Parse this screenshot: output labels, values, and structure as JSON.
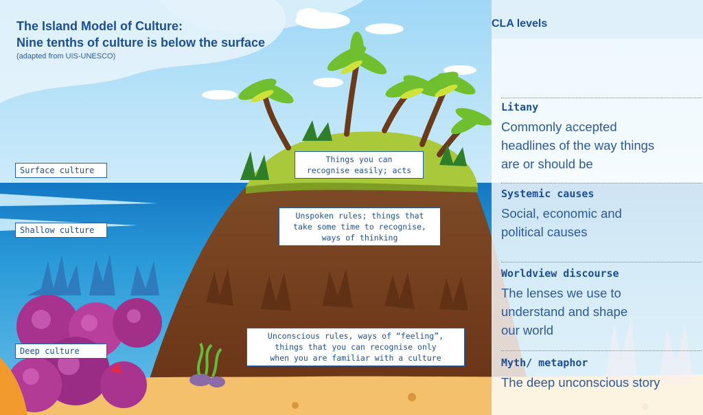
{
  "diagram": {
    "title_line1": "The Island Model of Culture:",
    "title_line2": "Nine tenths of culture is below the surface",
    "subtitle": "(adapted from UIS-UNESCO)",
    "layers": [
      {
        "label": "Surface culture"
      },
      {
        "label": "Shallow culture"
      },
      {
        "label": "Deep culture"
      }
    ],
    "notes": [
      {
        "lines": [
          "Things you can",
          "recognise easily; acts"
        ]
      },
      {
        "lines": [
          "Unspoken rules; things that",
          "take some time to recognise,",
          "ways of thinking"
        ]
      },
      {
        "lines": [
          "Unconscious rules, ways of “feeling”,",
          "things that you can recognise only",
          "when you are familiar with a culture"
        ]
      }
    ]
  },
  "cla_panel": {
    "title": "CLA levels",
    "levels": [
      {
        "name": "Litany",
        "desc_lines": [
          "Commonly accepted",
          "headlines of the way things",
          "are or should be"
        ]
      },
      {
        "name": "Systemic causes",
        "desc_lines": [
          "Social, economic and",
          "political causes"
        ]
      },
      {
        "name": "Worldview discourse",
        "desc_lines": [
          "The lenses we use to",
          "understand and shape",
          "our world"
        ]
      },
      {
        "name": "Myth/ metaphor",
        "desc_lines": [
          "The deep unconscious story"
        ]
      }
    ]
  },
  "colors": {
    "sky": "#8fd0f2",
    "sea": "#1e8fd2",
    "deep_sea": "#2f7fc4",
    "sand": "#f5c36e",
    "island_brown": "#7a3f1d",
    "grass": "#a8c93a",
    "text_blue": "#1b4f94"
  }
}
